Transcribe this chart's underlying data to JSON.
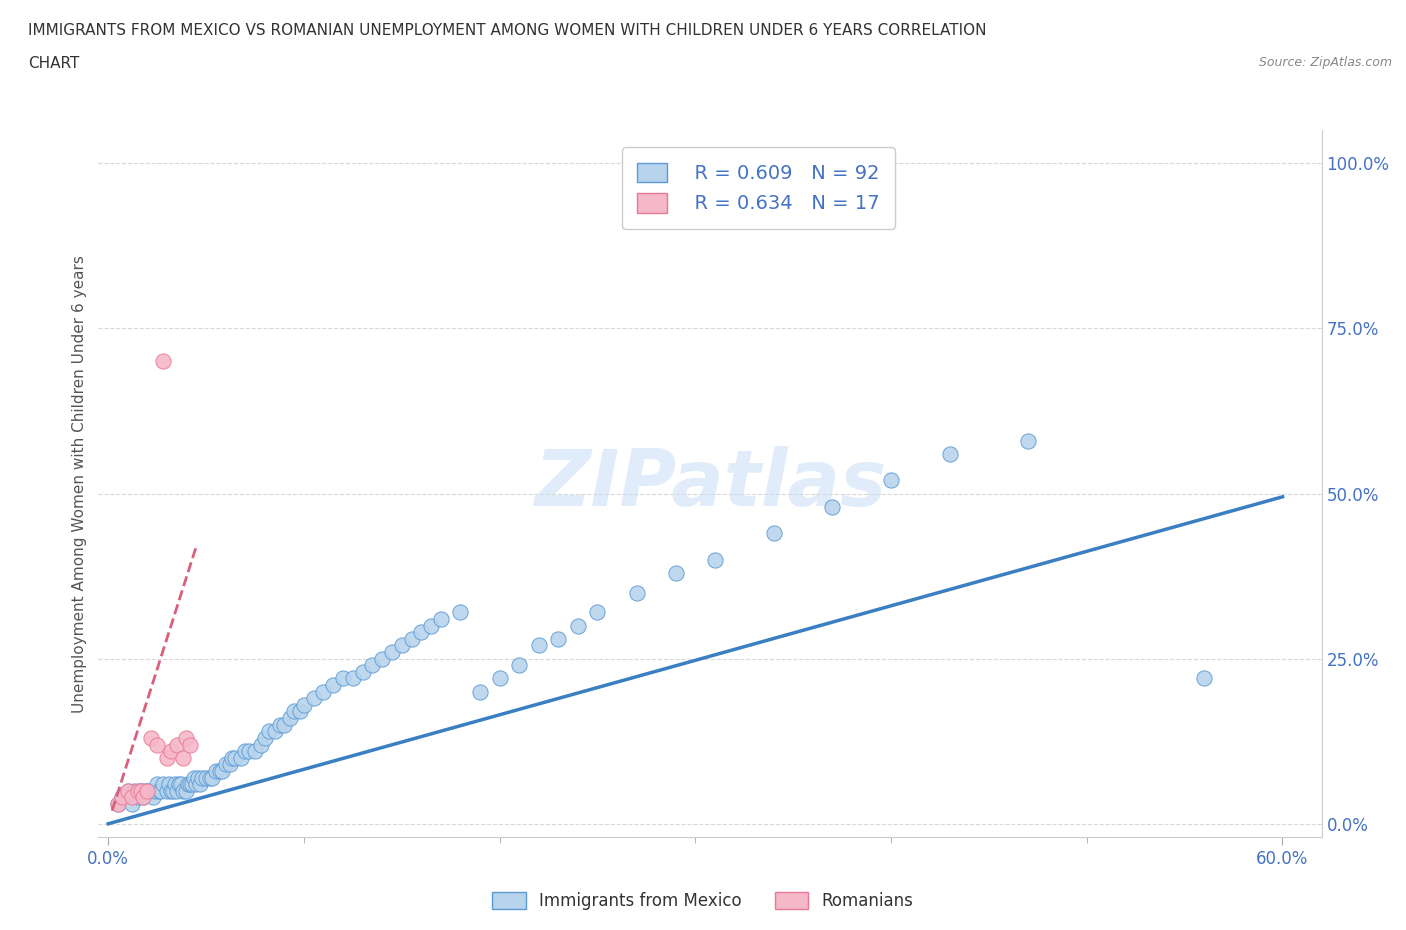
{
  "title_line1": "IMMIGRANTS FROM MEXICO VS ROMANIAN UNEMPLOYMENT AMONG WOMEN WITH CHILDREN UNDER 6 YEARS CORRELATION",
  "title_line2": "CHART",
  "source": "Source: ZipAtlas.com",
  "ylabel": "Unemployment Among Women with Children Under 6 years",
  "xlim": [
    -0.005,
    0.62
  ],
  "ylim": [
    -0.02,
    1.05
  ],
  "yticks": [
    0.0,
    0.25,
    0.5,
    0.75,
    1.0
  ],
  "yticklabels": [
    "0.0%",
    "25.0%",
    "50.0%",
    "75.0%",
    "100.0%"
  ],
  "xticks": [
    0.0,
    0.6
  ],
  "xticklabels": [
    "0.0%",
    "60.0%"
  ],
  "blue_color": "#b8d4ed",
  "pink_color": "#f5b8c8",
  "blue_edge_color": "#5b9bd5",
  "pink_edge_color": "#e87898",
  "blue_line_color": "#3a7fc1",
  "pink_line_color": "#d9607a",
  "legend_text1": "  R = 0.609   N = 92",
  "legend_text2": "  R = 0.634   N = 17",
  "watermark": "ZIPatlas",
  "background_color": "#ffffff",
  "grid_color": "#d8d8d8",
  "tick_color": "#4472c4",
  "title_color": "#333333",
  "source_color": "#888888",
  "blue_scatter_x": [
    0.005,
    0.007,
    0.01,
    0.012,
    0.013,
    0.015,
    0.016,
    0.017,
    0.018,
    0.019,
    0.02,
    0.021,
    0.022,
    0.023,
    0.024,
    0.025,
    0.026,
    0.027,
    0.028,
    0.03,
    0.031,
    0.032,
    0.033,
    0.034,
    0.035,
    0.036,
    0.037,
    0.038,
    0.04,
    0.041,
    0.042,
    0.043,
    0.044,
    0.045,
    0.046,
    0.047,
    0.048,
    0.05,
    0.052,
    0.053,
    0.055,
    0.057,
    0.058,
    0.06,
    0.062,
    0.063,
    0.065,
    0.068,
    0.07,
    0.072,
    0.075,
    0.078,
    0.08,
    0.082,
    0.085,
    0.088,
    0.09,
    0.093,
    0.095,
    0.098,
    0.1,
    0.105,
    0.11,
    0.115,
    0.12,
    0.125,
    0.13,
    0.135,
    0.14,
    0.145,
    0.15,
    0.155,
    0.16,
    0.165,
    0.17,
    0.18,
    0.19,
    0.2,
    0.21,
    0.22,
    0.23,
    0.24,
    0.25,
    0.27,
    0.29,
    0.31,
    0.34,
    0.37,
    0.4,
    0.43,
    0.47,
    0.56
  ],
  "blue_scatter_y": [
    0.03,
    0.04,
    0.05,
    0.03,
    0.05,
    0.04,
    0.05,
    0.05,
    0.04,
    0.05,
    0.05,
    0.05,
    0.05,
    0.04,
    0.05,
    0.06,
    0.05,
    0.05,
    0.06,
    0.05,
    0.06,
    0.05,
    0.05,
    0.06,
    0.05,
    0.06,
    0.06,
    0.05,
    0.05,
    0.06,
    0.06,
    0.06,
    0.07,
    0.06,
    0.07,
    0.06,
    0.07,
    0.07,
    0.07,
    0.07,
    0.08,
    0.08,
    0.08,
    0.09,
    0.09,
    0.1,
    0.1,
    0.1,
    0.11,
    0.11,
    0.11,
    0.12,
    0.13,
    0.14,
    0.14,
    0.15,
    0.15,
    0.16,
    0.17,
    0.17,
    0.18,
    0.19,
    0.2,
    0.21,
    0.22,
    0.22,
    0.23,
    0.24,
    0.25,
    0.26,
    0.27,
    0.28,
    0.29,
    0.3,
    0.31,
    0.32,
    0.2,
    0.22,
    0.24,
    0.27,
    0.28,
    0.3,
    0.32,
    0.35,
    0.38,
    0.4,
    0.44,
    0.48,
    0.52,
    0.56,
    0.58,
    0.22
  ],
  "pink_scatter_x": [
    0.005,
    0.007,
    0.01,
    0.012,
    0.015,
    0.017,
    0.018,
    0.02,
    0.022,
    0.025,
    0.028,
    0.03,
    0.032,
    0.035,
    0.038,
    0.04,
    0.042
  ],
  "pink_scatter_y": [
    0.03,
    0.04,
    0.05,
    0.04,
    0.05,
    0.05,
    0.04,
    0.05,
    0.13,
    0.12,
    0.7,
    0.1,
    0.11,
    0.12,
    0.1,
    0.13,
    0.12
  ],
  "blue_trendline_x": [
    0.0,
    0.6
  ],
  "blue_trendline_y": [
    0.0,
    0.495
  ],
  "pink_trendline_x": [
    0.002,
    0.045
  ],
  "pink_trendline_y": [
    0.02,
    0.42
  ]
}
